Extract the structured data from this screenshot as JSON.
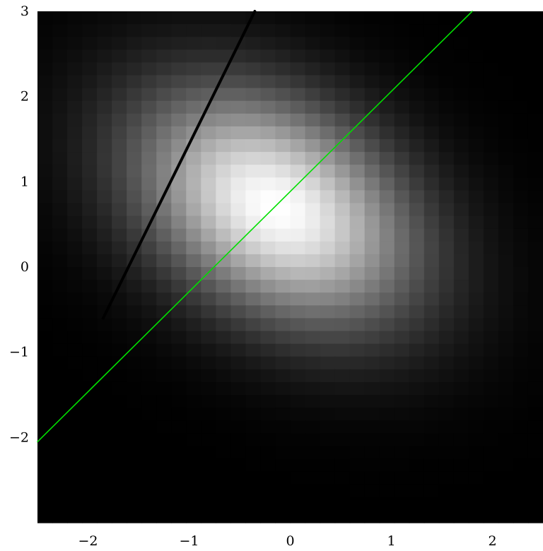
{
  "chart_data": {
    "type": "heatmap",
    "title": "",
    "xlabel": "",
    "ylabel": "",
    "xlim": [
      -2.5,
      2.5
    ],
    "ylim": [
      -3.0,
      3.0
    ],
    "grid": false,
    "legend": "none",
    "x_ticks": [
      -2,
      -1,
      0,
      1,
      2
    ],
    "y_ticks": [
      -2,
      -1,
      0,
      1,
      2,
      3
    ],
    "x_tick_labels": [
      "−2",
      "−1",
      "0",
      "1",
      "2"
    ],
    "y_tick_labels": [
      "−2",
      "−1",
      "0",
      "1",
      "2",
      "3"
    ],
    "heatmap": {
      "cells_x": 34,
      "cells_y": 40,
      "colormap": "gray",
      "peak": {
        "x": -0.15,
        "y": 0.7
      },
      "spread_x": 0.95,
      "spread_y": 0.95,
      "correlation": -0.35
    },
    "lines": [
      {
        "color": "#00e000",
        "points": [
          [
            -2.5,
            -2.05
          ],
          [
            1.8,
            3.0
          ]
        ]
      },
      {
        "color": "#000000",
        "points": [
          [
            -1.85,
            -0.6
          ],
          [
            -0.35,
            3.0
          ]
        ]
      }
    ]
  }
}
